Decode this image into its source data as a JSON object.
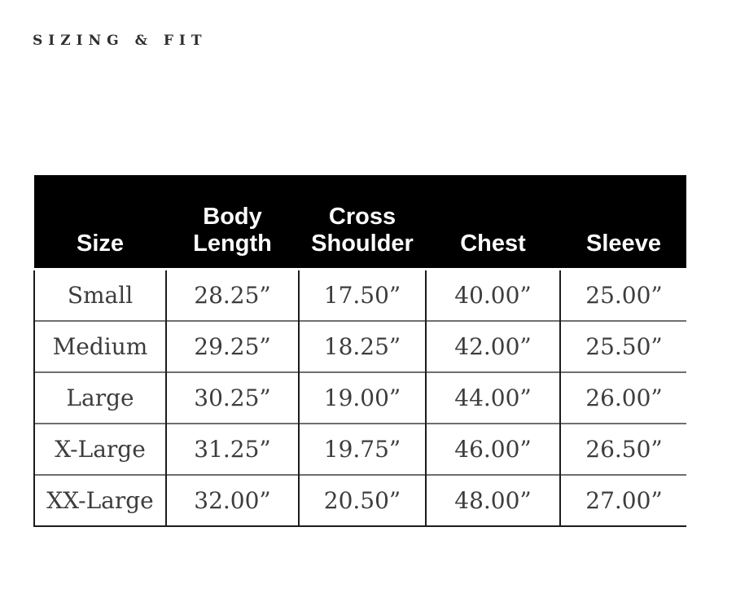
{
  "page": {
    "title": "SIZING & FIT"
  },
  "colors": {
    "header_bg": "#000000",
    "header_text": "#ffffff",
    "body_text": "#3d3d3d",
    "border_dark": "#1c1c1c",
    "row_divider": "#6f6f6f",
    "title_text": "#2d2d32",
    "background": "#ffffff"
  },
  "chart_data": {
    "type": "table",
    "title": "SIZING & FIT",
    "columns": [
      "Size",
      "Body Length",
      "Cross Shoulder",
      "Chest",
      "Sleeve"
    ],
    "rows": [
      [
        "Small",
        "28.25”",
        "17.50”",
        "40.00”",
        "25.00”"
      ],
      [
        "Medium",
        "29.25”",
        "18.25”",
        "42.00”",
        "25.50”"
      ],
      [
        "Large",
        "30.25”",
        "19.00”",
        "44.00”",
        "26.00”"
      ],
      [
        "X-Large",
        "31.25”",
        "19.75”",
        "46.00”",
        "26.50”"
      ],
      [
        "XX-Large",
        "32.00”",
        "20.50”",
        "48.00”",
        "27.00”"
      ]
    ]
  },
  "table": {
    "columns": {
      "size": "Size",
      "body_length": "Body Length",
      "cross_shoulder": "Cross Shoulder",
      "chest": "Chest",
      "sleeve": "Sleeve"
    },
    "rows": [
      {
        "size": "Small",
        "body_length": "28.25”",
        "cross_shoulder": "17.50”",
        "chest": "40.00”",
        "sleeve": "25.00”"
      },
      {
        "size": "Medium",
        "body_length": "29.25”",
        "cross_shoulder": "18.25”",
        "chest": "42.00”",
        "sleeve": "25.50”"
      },
      {
        "size": "Large",
        "body_length": "30.25”",
        "cross_shoulder": "19.00”",
        "chest": "44.00”",
        "sleeve": "26.00”"
      },
      {
        "size": "X-Large",
        "body_length": "31.25”",
        "cross_shoulder": "19.75”",
        "chest": "46.00”",
        "sleeve": "26.50”"
      },
      {
        "size": "XX-Large",
        "body_length": "32.00”",
        "cross_shoulder": "20.50”",
        "chest": "48.00”",
        "sleeve": "27.00”"
      }
    ]
  }
}
